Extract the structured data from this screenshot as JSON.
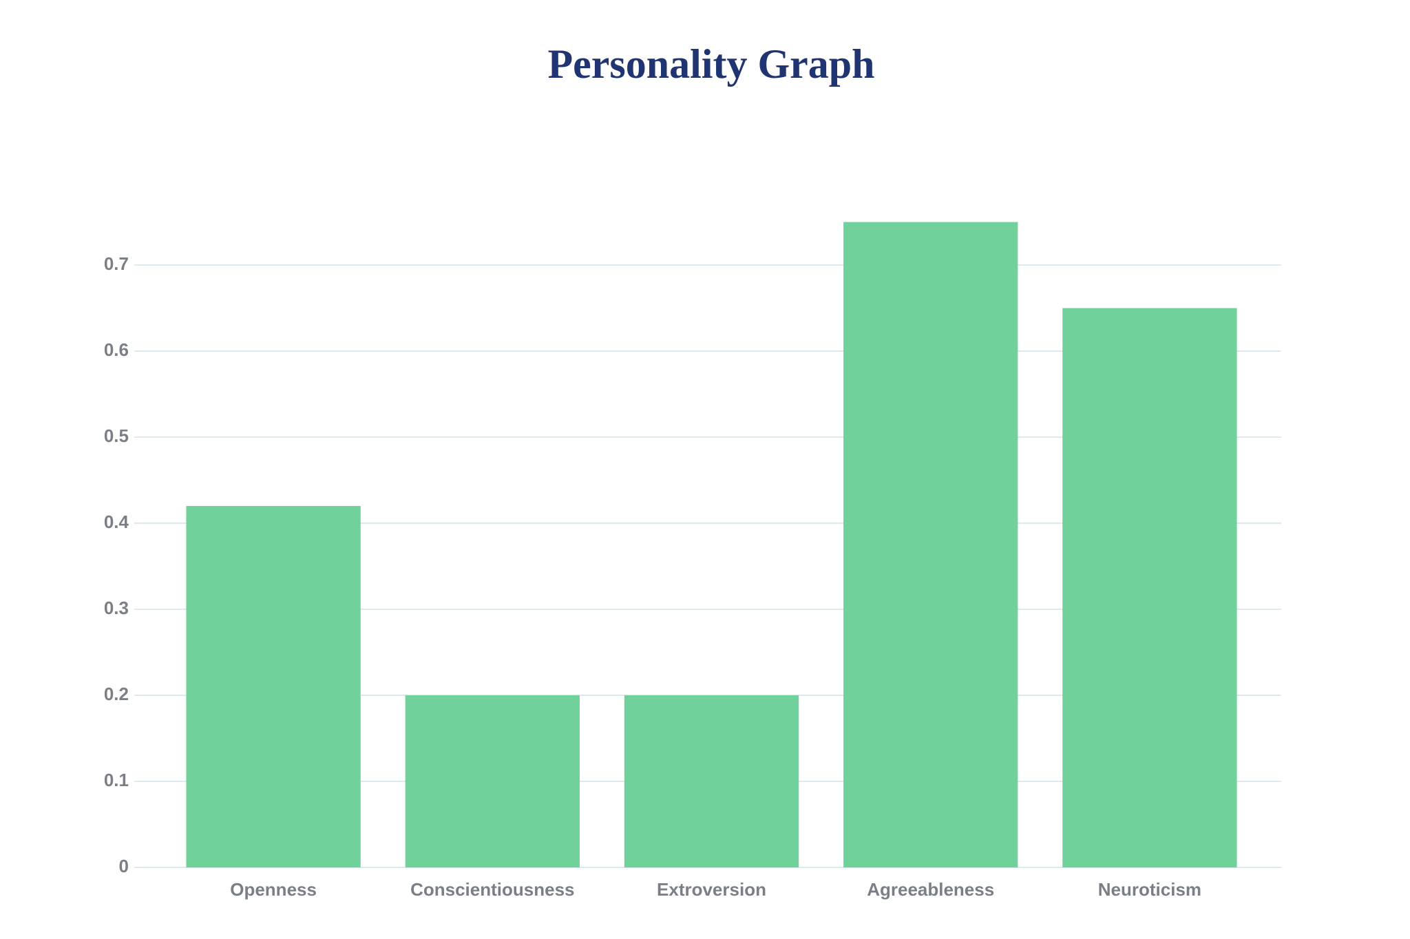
{
  "chart_data": {
    "type": "bar",
    "title": "Personality Graph",
    "categories": [
      "Openness",
      "Conscientiousness",
      "Extroversion",
      "Agreeableness",
      "Neuroticism"
    ],
    "values": [
      0.42,
      0.2,
      0.2,
      0.75,
      0.65
    ],
    "color": "#71d19b",
    "ylim": [
      0,
      0.75
    ],
    "yticks": [
      0,
      0.1,
      0.2,
      0.3,
      0.4,
      0.5,
      0.6,
      0.7
    ],
    "grid": true
  }
}
